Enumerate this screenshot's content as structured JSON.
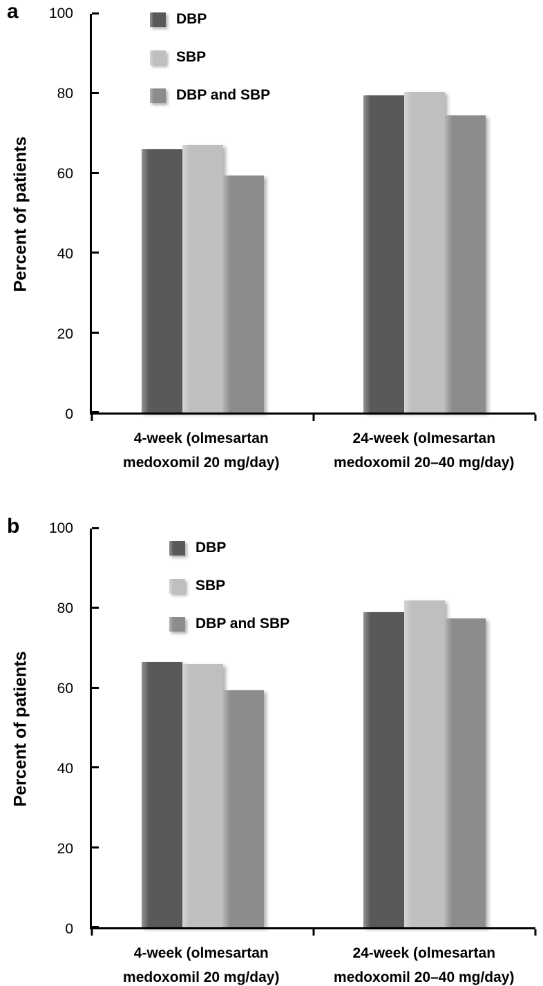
{
  "figure_name": "percent-of-patients-bar-charts",
  "chart_data": [
    {
      "type": "bar",
      "panel_label": "a",
      "title": "",
      "xlabel": "",
      "ylabel": "Percent of patients",
      "ylim": [
        0,
        100
      ],
      "yticks": [
        0,
        20,
        40,
        60,
        80,
        100
      ],
      "grid": false,
      "legend_position": "top-left-inside",
      "categories": [
        [
          "4-week (olmesartan",
          "medoxomil 20 mg/day)"
        ],
        [
          "24-week (olmesartan",
          "medoxomil 20–40 mg/day)"
        ]
      ],
      "series": [
        {
          "name": "DBP",
          "color": "#595959",
          "values": [
            66,
            79.5
          ]
        },
        {
          "name": "SBP",
          "color": "#bfbfbf",
          "values": [
            67,
            80.5
          ]
        },
        {
          "name": "DBP and SBP",
          "color": "#8c8c8c",
          "values": [
            59.5,
            74.5
          ]
        }
      ]
    },
    {
      "type": "bar",
      "panel_label": "b",
      "title": "",
      "xlabel": "",
      "ylabel": "Percent of patients",
      "ylim": [
        0,
        100
      ],
      "yticks": [
        0,
        20,
        40,
        60,
        80,
        100
      ],
      "grid": false,
      "legend_position": "top-left-inside",
      "categories": [
        [
          "4-week (olmesartan",
          "medoxomil 20 mg/day)"
        ],
        [
          "24-week (olmesartan",
          "medoxomil 20–40 mg/day)"
        ]
      ],
      "series": [
        {
          "name": "DBP",
          "color": "#595959",
          "values": [
            66.5,
            79
          ]
        },
        {
          "name": "SBP",
          "color": "#bfbfbf",
          "values": [
            66,
            82
          ]
        },
        {
          "name": "DBP and SBP",
          "color": "#8c8c8c",
          "values": [
            59.5,
            77.5
          ]
        }
      ]
    }
  ]
}
